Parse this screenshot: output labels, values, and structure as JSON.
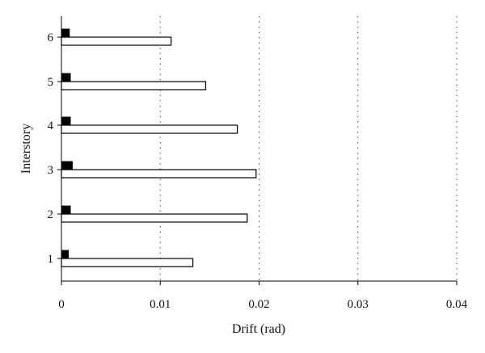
{
  "chart_data": {
    "type": "bar",
    "orientation": "horizontal",
    "xlabel": "Drift (rad)",
    "ylabel": "Interstory",
    "xlim": [
      0,
      0.04
    ],
    "xticks": [
      "0",
      "0.01",
      "0.02",
      "0.03",
      "0.04"
    ],
    "categories": [
      "1",
      "2",
      "3",
      "4",
      "5",
      "6"
    ],
    "grid": "vertical dotted",
    "series": [
      {
        "color": "#000000",
        "values": [
          0.0007,
          0.0009,
          0.0011,
          0.0009,
          0.0009,
          0.0008
        ]
      },
      {
        "color": "#ffffff",
        "values": [
          0.0133,
          0.0188,
          0.0197,
          0.0178,
          0.0146,
          0.0111
        ]
      }
    ]
  }
}
